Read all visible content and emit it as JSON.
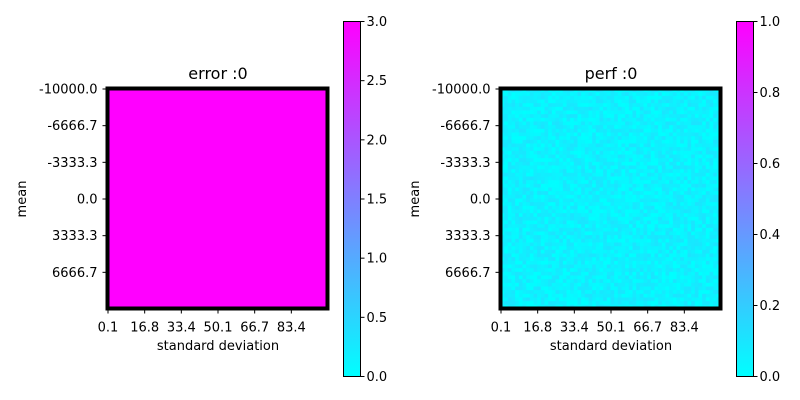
{
  "chart_data": [
    {
      "type": "heatmap",
      "title": "error :0",
      "xlabel": "standard deviation",
      "ylabel": "mean",
      "x_tick_labels": [
        "0.1",
        "16.8",
        "33.4",
        "50.1",
        "66.7",
        "83.4"
      ],
      "y_tick_labels": [
        "-10000.0",
        "-6666.7",
        "-3333.3",
        "0.0",
        "3333.3",
        "6666.7"
      ],
      "colormap": "cool",
      "colorbar": {
        "range": [
          0,
          3
        ],
        "ticks": [
          "0.0",
          "0.5",
          "1.0",
          "1.5",
          "2.0",
          "2.5",
          "3.0"
        ]
      },
      "uniform_value": 3.0,
      "noise": 0
    },
    {
      "type": "heatmap",
      "title": "perf :0",
      "xlabel": "standard deviation",
      "ylabel": "mean",
      "x_tick_labels": [
        "0.1",
        "16.8",
        "33.4",
        "50.1",
        "66.7",
        "83.4"
      ],
      "y_tick_labels": [
        "-10000.0",
        "-6666.7",
        "-3333.3",
        "0.0",
        "3333.3",
        "6666.7"
      ],
      "colormap": "cool",
      "colorbar": {
        "range": [
          0,
          1
        ],
        "ticks": [
          "0.0",
          "0.2",
          "0.4",
          "0.6",
          "0.8",
          "1.0"
        ]
      },
      "uniform_value": 0.05,
      "noise": 0.06
    }
  ]
}
